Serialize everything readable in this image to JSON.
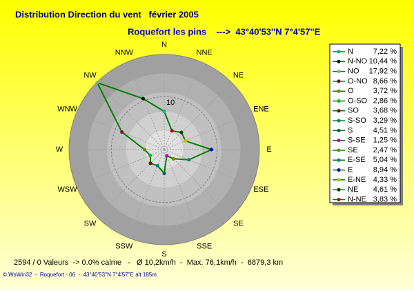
{
  "chart_data": {
    "type": "windrose",
    "title": "Distribution Direction du vent   février 2005",
    "subtitle": "Roquefort les pins    --->  43°40'53''N 7°4'57''E",
    "categories": [
      "N",
      "NNW",
      "NW",
      "WNW",
      "W",
      "WSW",
      "SW",
      "SSW",
      "S",
      "SSE",
      "SE",
      "ESE",
      "E",
      "ENE",
      "NE",
      "NNE"
    ],
    "legend_names": [
      "N",
      "N-NO",
      "NO",
      "O-NO",
      "O",
      "O-SO",
      "SO",
      "S-SO",
      "S",
      "S-SE",
      "SE",
      "E-SE",
      "E",
      "E-NE",
      "NE",
      "N-NE"
    ],
    "values": [
      7.22,
      10.44,
      17.92,
      8.66,
      3.72,
      2.86,
      3.68,
      3.29,
      4.51,
      1.25,
      2.47,
      5.04,
      8.94,
      4.33,
      4.61,
      3.83
    ],
    "value_labels": [
      "7,22 %",
      "10,44 %",
      "17,92 %",
      "8,66 %",
      "3,72 %",
      "2,86 %",
      "3,68 %",
      "3,29 %",
      "4,51 %",
      "1,25 %",
      "2,47 %",
      "5,04 %",
      "8,94 %",
      "4,33 %",
      "4,61 %",
      "3,83 %"
    ],
    "marker_colors": [
      "#00b0b0",
      "#000000",
      "#80b090",
      "#800040",
      "#808000",
      "#00c000",
      "#800000",
      "#008080",
      "#006060",
      "#c000c0",
      "#808000",
      "#008080",
      "#0000c0",
      "#c0c000",
      "#004000",
      "#c00000"
    ],
    "color": "#008000",
    "rlim": [
      0,
      18
    ],
    "rticks": [
      10
    ],
    "footer": "2594 / 0 Valeurs  -> 0.0% calme   -   Ø 10,2km/h  -  Max. 76,1km/h  -  6879,3 km",
    "credit": "© WsWin32  -  Roquefort - 06  -  43°40'53''N 7°4'57''E alt 185m"
  }
}
